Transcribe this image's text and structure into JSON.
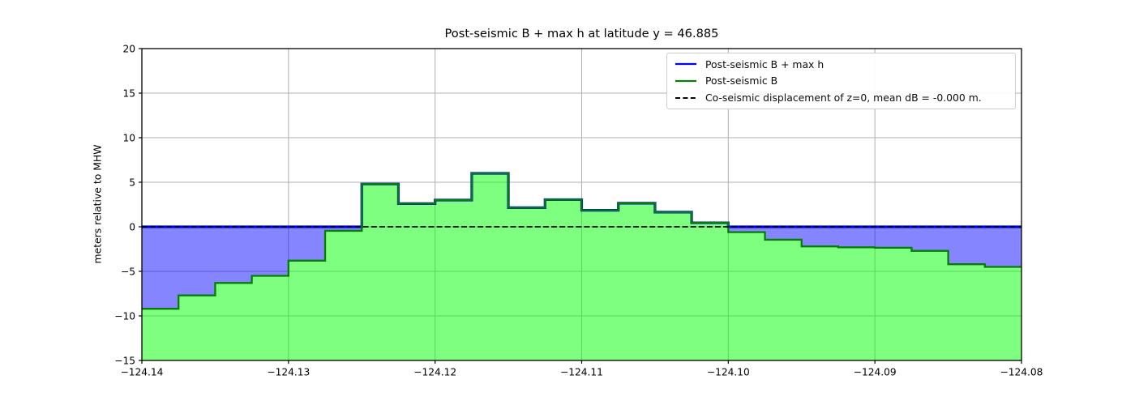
{
  "figure": {
    "title": "Post-seismic B + max h at latitude y = 46.885",
    "ylabel": "meters relative to MHW"
  },
  "legend": {
    "items": [
      {
        "label": "Post-seismic B + max h",
        "color": "#0000ff",
        "style": "solid"
      },
      {
        "label": "Post-seismic B",
        "color": "#067d06",
        "style": "solid"
      },
      {
        "label": "Co-seismic displacement of z=0, mean dB = -0.000 m.",
        "color": "#000000",
        "style": "dashed"
      }
    ],
    "position": "upper right"
  },
  "colors": {
    "blue_line": "#0000ff",
    "blue_fill": "rgba(0,0,255,0.48)",
    "green_line": "#067d06",
    "green_fill": "rgba(0,255,0,0.5)",
    "dashed_line": "#000000",
    "grid": "#b0b0b0",
    "spine": "#000000",
    "text": "#000000"
  },
  "chart_data": {
    "type": "area",
    "subtype": "filled-step-function",
    "title": "Post-seismic B + max h at latitude y = 46.885",
    "xlabel": "",
    "ylabel": "meters relative to MHW",
    "xlim": [
      -124.14,
      -124.08
    ],
    "ylim": [
      -15,
      20
    ],
    "grid": true,
    "legend_position": "upper right",
    "x_start": -124.14,
    "bin_width": 0.0025,
    "zero_line": 0,
    "series": [
      {
        "name": "Post-seismic B",
        "values": [
          -9.2,
          -7.7,
          -6.3,
          -5.5,
          -3.8,
          -0.45,
          4.8,
          2.6,
          3.0,
          6.0,
          2.15,
          3.05,
          1.85,
          2.65,
          1.65,
          0.45,
          -0.6,
          -1.45,
          -2.2,
          -2.3,
          -2.35,
          -2.7,
          -4.2,
          -4.5
        ]
      },
      {
        "name": "Post-seismic B + max h",
        "values": [
          0,
          0,
          0,
          0,
          0,
          0,
          4.8,
          2.6,
          3.0,
          6.0,
          2.15,
          3.05,
          1.85,
          2.65,
          1.65,
          0.45,
          0,
          0,
          0,
          0,
          0,
          0,
          0,
          0
        ]
      }
    ],
    "x_ticks": {
      "values": [
        -124.14,
        -124.13,
        -124.12,
        -124.11,
        -124.1,
        -124.09,
        -124.08
      ],
      "labels": [
        "−124.14",
        "−124.13",
        "−124.12",
        "−124.11",
        "−124.10",
        "−124.09",
        "−124.08"
      ]
    },
    "y_ticks": {
      "values": [
        -15,
        -10,
        -5,
        0,
        5,
        10,
        15,
        20
      ],
      "labels": [
        "−15",
        "−10",
        "−5",
        "0",
        "5",
        "10",
        "15",
        "20"
      ]
    }
  }
}
